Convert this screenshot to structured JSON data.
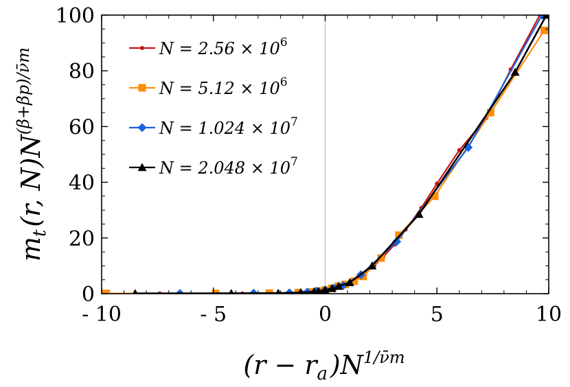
{
  "chart_data": {
    "type": "line",
    "xlabel": "(r − r_a)N^{1/ν̄_m}",
    "ylabel": "m_t(r, N)N^{(β+β_p)/ν̄_m}",
    "xlim": [
      -10,
      10
    ],
    "ylim": [
      0,
      100
    ],
    "x_ticks": [
      -10,
      -5,
      0,
      5,
      10
    ],
    "x_tick_labels": [
      "- 10",
      "- 5",
      "0",
      "5",
      "10"
    ],
    "y_ticks": [
      0,
      20,
      40,
      60,
      80,
      100
    ],
    "y_tick_labels": [
      "0",
      "20",
      "40",
      "60",
      "80",
      "100"
    ],
    "grid": false,
    "vertical_reference_line_x": 0,
    "legend_position": "top-left",
    "series": [
      {
        "name": "N = 2.56 × 10^6",
        "color": "#cc1111",
        "marker": "circle",
        "x": [
          -9.8,
          -7.4,
          -5.0,
          -3.7,
          -2.5,
          -1.6,
          -1.2,
          -0.8,
          -0.4,
          -0.1,
          0.1,
          0.3,
          0.55,
          0.8,
          1.1,
          1.45,
          1.8,
          2.2,
          2.6,
          3.1,
          3.6,
          4.3,
          5.0,
          6.0,
          7.2,
          8.3,
          9.6
        ],
        "y": [
          0.1,
          0.1,
          0.1,
          0.1,
          0.2,
          0.3,
          0.4,
          0.6,
          0.9,
          1.2,
          1.6,
          2.0,
          2.6,
          3.3,
          4.3,
          5.8,
          7.7,
          10.1,
          13.2,
          17.6,
          23.0,
          30.8,
          39.5,
          51.5,
          63.0,
          80.5,
          100
        ]
      },
      {
        "name": "N = 5.12 × 10^6",
        "color": "#ff8c0a",
        "marker": "square",
        "x": [
          -9.8,
          -4.9,
          -2.5,
          -1.2,
          -0.6,
          -0.3,
          0.0,
          0.3,
          0.6,
          0.9,
          1.3,
          1.7,
          2.5,
          3.3,
          4.9,
          7.4,
          9.8
        ],
        "y": [
          0.1,
          0.1,
          0.2,
          0.4,
          0.6,
          0.9,
          1.3,
          1.9,
          2.7,
          3.3,
          4.5,
          6.2,
          12.8,
          21.0,
          35.0,
          65.0,
          94.5
        ]
      },
      {
        "name": "N = 1.024 × 10^7",
        "color": "#1a62e0",
        "marker": "diamond",
        "x": [
          -6.5,
          -3.2,
          -1.6,
          -0.8,
          -0.4,
          0.0,
          0.4,
          0.8,
          1.6,
          3.2,
          6.4,
          9.7
        ],
        "y": [
          0.1,
          0.2,
          0.3,
          0.6,
          0.9,
          1.3,
          2.0,
          2.9,
          6.8,
          18.7,
          52.5,
          100
        ]
      },
      {
        "name": "N = 2.048 × 10^7",
        "color": "#000000",
        "marker": "triangle",
        "x": [
          -8.5,
          -4.2,
          -2.1,
          -1.1,
          -0.5,
          -0.3,
          0.0,
          0.3,
          0.6,
          1.1,
          2.1,
          4.2,
          8.5,
          9.9
        ],
        "y": [
          0.1,
          0.1,
          0.2,
          0.4,
          0.7,
          0.9,
          1.3,
          1.9,
          2.7,
          4.0,
          10.0,
          28.5,
          79.5,
          100
        ]
      }
    ]
  }
}
